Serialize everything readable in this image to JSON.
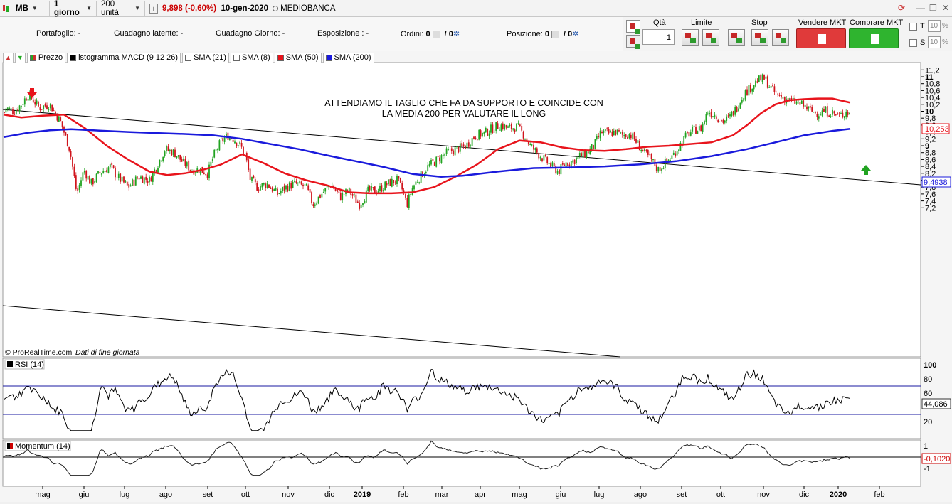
{
  "toolbar": {
    "symbol": "MB",
    "timeframe": "1 giorno",
    "units": "200 unità",
    "price": "9,898",
    "change": "(-0,60%)",
    "date": "10-gen-2020",
    "name": "MEDIOBANCA"
  },
  "info": {
    "portfolio": "Portafoglio: -",
    "latent": "Guadagno latente: -",
    "day_gain": "Guadagno Giorno: -",
    "exposure": "Esposizione : -",
    "orders_label": "Ordini:",
    "orders_a": "0",
    "orders_b": "/ 0",
    "position_label": "Posizione:",
    "position_a": "0",
    "position_b": "/ 0"
  },
  "order_panel": {
    "qty_label": "Qtà",
    "qty_value": "1",
    "limit_label": "Limite",
    "stop_label": "Stop",
    "sell_label": "Vendere MKT",
    "buy_label": "Comprare MKT",
    "t_label": "T",
    "s_label": "S",
    "t_value": "10",
    "s_value": "10",
    "pct": "%"
  },
  "legend": {
    "price": "Prezzo",
    "macd": "istogramma MACD (9 12 26)",
    "sma21": "SMA (21)",
    "sma8": "SMA (8)",
    "sma50": "SMA (50)",
    "sma200": "SMA (200)"
  },
  "colors": {
    "sma50": "#e8141c",
    "sma200": "#1a1adc",
    "up": "#21a321",
    "down": "#d0141c"
  },
  "annotation": {
    "line1": "ATTENDIAMO IL TAGLIO CHE FA DA SUPPORTO E COINCIDE CON",
    "line2": "LA MEDIA 200 PER VALUTARE IL LONG"
  },
  "credit": "© ProRealTime.com",
  "credit_note": "Dati di fine giornata",
  "rsi_label": "RSI (14)",
  "momentum_label": "Momentum (14)",
  "price_tags": {
    "sma50": "10,253",
    "sma200": "9,4938",
    "rsi": "44,086",
    "momentum": "-0,1020"
  },
  "chart_data": [
    {
      "type": "candlestick",
      "title": "MB",
      "x_tick_labels": [
        "mag",
        "giu",
        "lug",
        "ago",
        "set",
        "ott",
        "nov",
        "dic",
        "2019",
        "feb",
        "mar",
        "apr",
        "mag",
        "giu",
        "lug",
        "ago",
        "set",
        "ott",
        "nov",
        "dic",
        "2020",
        "feb"
      ],
      "y_tick_labels": [
        "11,2",
        "11",
        "10,8",
        "10,6",
        "10,4",
        "10,2",
        "10",
        "9,8",
        "9,6",
        "9,4",
        "9,2",
        "9",
        "8,8",
        "8,6",
        "8,4",
        "8,2",
        "8",
        "7,8",
        "7,6",
        "7,4",
        "7,2"
      ],
      "ylim": [
        7.0,
        11.3
      ],
      "close_path": [
        [
          0,
          9.55
        ],
        [
          8,
          10.1
        ],
        [
          20,
          10.0
        ],
        [
          30,
          10.2
        ],
        [
          40,
          10.5
        ],
        [
          55,
          10.1
        ],
        [
          70,
          10.2
        ],
        [
          85,
          9.7
        ],
        [
          98,
          8.9
        ],
        [
          108,
          7.6
        ],
        [
          118,
          8.3
        ],
        [
          128,
          7.9
        ],
        [
          140,
          8.2
        ],
        [
          155,
          8.4
        ],
        [
          165,
          8.1
        ],
        [
          180,
          7.8
        ],
        [
          195,
          8.1
        ],
        [
          210,
          8.0
        ],
        [
          220,
          8.4
        ],
        [
          232,
          8.9
        ],
        [
          245,
          8.8
        ],
        [
          258,
          8.5
        ],
        [
          270,
          8.3
        ],
        [
          282,
          8.3
        ],
        [
          292,
          8.2
        ],
        [
          300,
          8.7
        ],
        [
          310,
          9.1
        ],
        [
          320,
          9.3
        ],
        [
          328,
          9.2
        ],
        [
          338,
          9.0
        ],
        [
          345,
          8.7
        ],
        [
          352,
          8.0
        ],
        [
          362,
          7.8
        ],
        [
          375,
          7.9
        ],
        [
          390,
          7.6
        ],
        [
          402,
          7.8
        ],
        [
          415,
          7.9
        ],
        [
          430,
          7.8
        ],
        [
          440,
          7.3
        ],
        [
          452,
          7.6
        ],
        [
          465,
          7.9
        ],
        [
          478,
          7.5
        ],
        [
          490,
          7.7
        ],
        [
          505,
          7.3
        ],
        [
          518,
          7.7
        ],
        [
          530,
          7.7
        ],
        [
          545,
          7.9
        ],
        [
          558,
          8.0
        ],
        [
          566,
          7.7
        ],
        [
          572,
          7.3
        ],
        [
          580,
          7.8
        ],
        [
          590,
          8.1
        ],
        [
          602,
          8.4
        ],
        [
          615,
          8.6
        ],
        [
          628,
          8.8
        ],
        [
          642,
          8.9
        ],
        [
          655,
          9.0
        ],
        [
          668,
          9.3
        ],
        [
          680,
          9.35
        ],
        [
          692,
          9.5
        ],
        [
          703,
          9.6
        ],
        [
          715,
          9.5
        ],
        [
          727,
          9.55
        ],
        [
          737,
          9.3
        ],
        [
          745,
          9.0
        ],
        [
          755,
          8.8
        ],
        [
          765,
          8.6
        ],
        [
          775,
          8.4
        ],
        [
          785,
          8.25
        ],
        [
          795,
          8.5
        ],
        [
          805,
          8.55
        ],
        [
          815,
          8.7
        ],
        [
          825,
          8.8
        ],
        [
          835,
          9.0
        ],
        [
          845,
          9.4
        ],
        [
          855,
          9.35
        ],
        [
          865,
          9.4
        ],
        [
          875,
          9.3
        ],
        [
          885,
          9.35
        ],
        [
          895,
          9.1
        ],
        [
          905,
          8.8
        ],
        [
          915,
          8.6
        ],
        [
          925,
          8.3
        ],
        [
          935,
          8.5
        ],
        [
          945,
          8.7
        ],
        [
          955,
          9.0
        ],
        [
          965,
          9.3
        ],
        [
          975,
          9.45
        ],
        [
          985,
          9.5
        ],
        [
          995,
          10.0
        ],
        [
          1005,
          9.9
        ],
        [
          1015,
          9.7
        ],
        [
          1025,
          9.8
        ],
        [
          1035,
          10.1
        ],
        [
          1045,
          10.5
        ],
        [
          1055,
          10.7
        ],
        [
          1065,
          10.9
        ],
        [
          1075,
          10.95
        ],
        [
          1082,
          10.7
        ],
        [
          1090,
          10.5
        ],
        [
          1100,
          10.4
        ],
        [
          1110,
          10.3
        ],
        [
          1120,
          10.25
        ],
        [
          1130,
          10.15
        ],
        [
          1140,
          10.0
        ],
        [
          1150,
          9.95
        ],
        [
          1160,
          10.0
        ],
        [
          1170,
          9.95
        ],
        [
          1180,
          9.85
        ],
        [
          1190,
          10.0
        ],
        [
          1195,
          9.9
        ]
      ]
    },
    {
      "type": "line",
      "name": "SMA (50)",
      "x": [
        5,
        30,
        60,
        90,
        120,
        150,
        180,
        210,
        235,
        260,
        285,
        310,
        340,
        370,
        400,
        430,
        460,
        490,
        520,
        550,
        580,
        610,
        640,
        670,
        700,
        730,
        760,
        790,
        820,
        850,
        880,
        910,
        940,
        970,
        1000,
        1030,
        1050,
        1070,
        1090,
        1110,
        1130,
        1150,
        1170,
        1195
      ],
      "y": [
        9.9,
        9.82,
        9.87,
        9.9,
        9.5,
        9.0,
        8.6,
        8.25,
        8.15,
        8.2,
        8.3,
        8.45,
        8.75,
        8.5,
        8.2,
        8.0,
        7.85,
        7.65,
        7.62,
        7.62,
        7.65,
        7.8,
        8.1,
        8.45,
        8.9,
        9.15,
        9.1,
        8.95,
        8.87,
        8.85,
        8.9,
        8.97,
        9.0,
        9.05,
        9.1,
        9.3,
        9.6,
        9.95,
        10.2,
        10.32,
        10.35,
        10.37,
        10.37,
        10.25
      ]
    },
    {
      "type": "line",
      "name": "SMA (200)",
      "x": [
        5,
        40,
        70,
        100,
        140,
        180,
        220,
        260,
        300,
        340,
        380,
        420,
        460,
        500,
        540,
        580,
        620,
        650,
        700,
        750,
        800,
        850,
        900,
        950,
        1000,
        1050,
        1090,
        1130,
        1170,
        1195
      ],
      "y": [
        9.25,
        9.38,
        9.45,
        9.48,
        9.44,
        9.4,
        9.37,
        9.34,
        9.3,
        9.2,
        9.05,
        8.9,
        8.72,
        8.55,
        8.38,
        8.18,
        8.1,
        8.13,
        8.25,
        8.35,
        8.37,
        8.4,
        8.46,
        8.55,
        8.7,
        8.9,
        9.1,
        9.3,
        9.43,
        9.49
      ]
    }
  ]
}
